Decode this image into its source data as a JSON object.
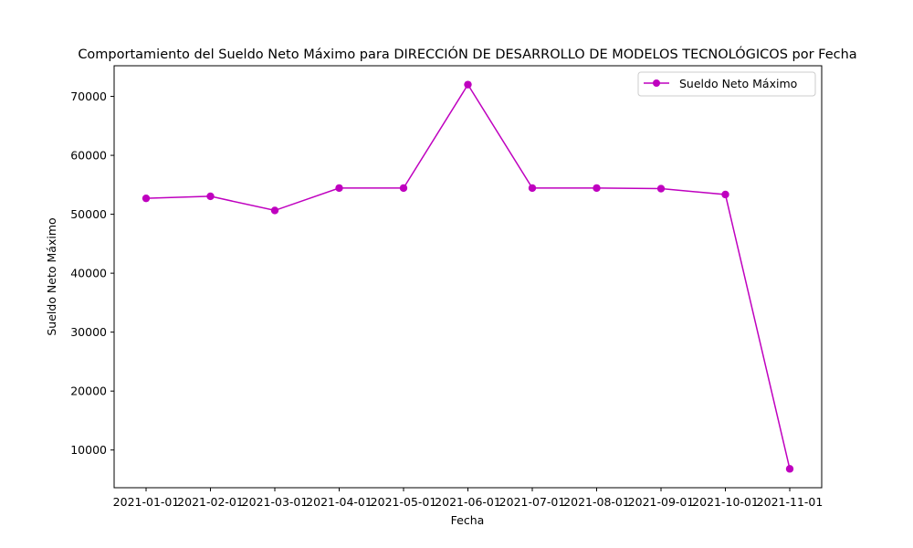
{
  "chart_data": {
    "type": "line",
    "title": "Comportamiento del Sueldo Neto Máximo para DIRECCIÓN DE DESARROLLO DE MODELOS TECNOLÓGICOS por Fecha",
    "xlabel": "Fecha",
    "ylabel": "Sueldo Neto Máximo",
    "categories": [
      "2021-01-01",
      "2021-02-01",
      "2021-03-01",
      "2021-04-01",
      "2021-05-01",
      "2021-06-01",
      "2021-07-01",
      "2021-08-01",
      "2021-09-01",
      "2021-10-01",
      "2021-11-01"
    ],
    "series": [
      {
        "name": "Sueldo Neto Máximo",
        "color": "#bf00bf",
        "marker": "circle",
        "values": [
          52700,
          53050,
          50650,
          54450,
          54450,
          72000,
          54450,
          54450,
          54350,
          53350,
          6800
        ]
      }
    ],
    "ylim": [
      3600,
      75200
    ],
    "yticks": [
      10000,
      20000,
      30000,
      40000,
      50000,
      60000,
      70000
    ],
    "ytick_labels": [
      "10000",
      "20000",
      "30000",
      "40000",
      "50000",
      "60000",
      "70000"
    ],
    "grid": false,
    "legend": "upper right"
  }
}
